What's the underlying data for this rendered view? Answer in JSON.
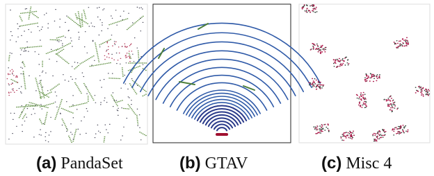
{
  "figure": {
    "panels": [
      {
        "label": "(a)",
        "name": "PandaSet"
      },
      {
        "label": "(b)",
        "name": "GTAV"
      },
      {
        "label": "(c)",
        "name": "Misc 4"
      }
    ]
  }
}
